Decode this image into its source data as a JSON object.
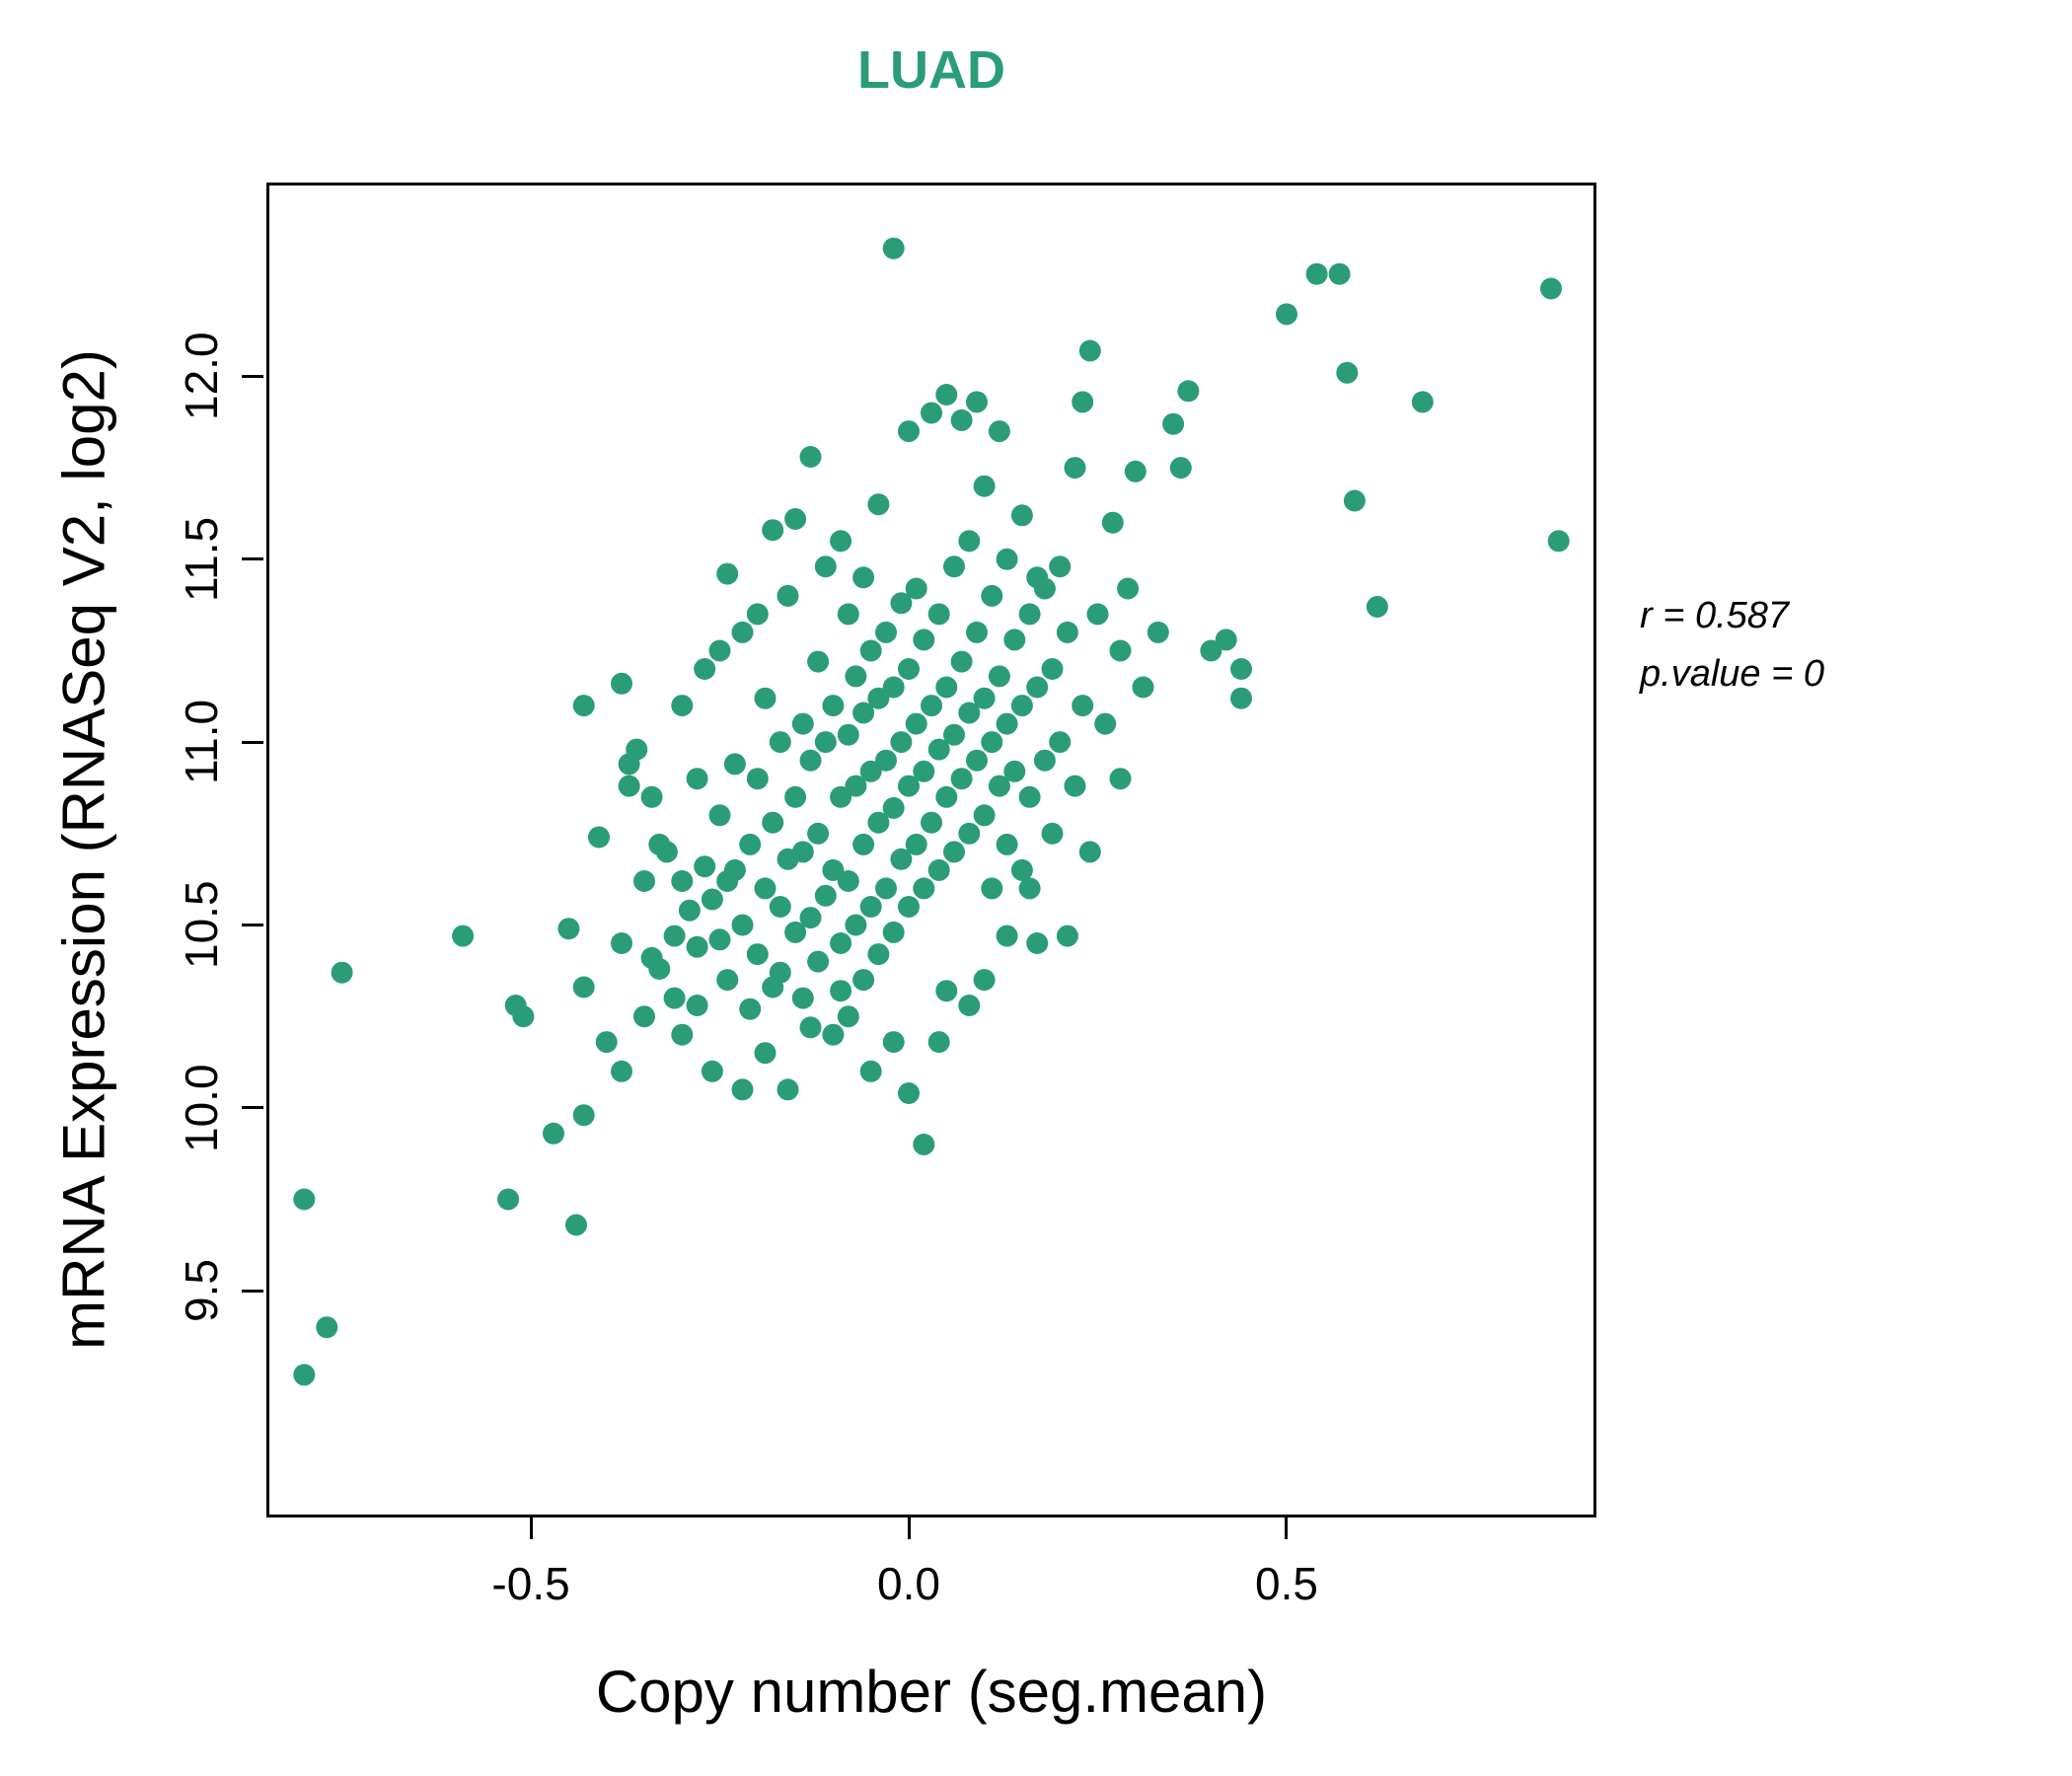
{
  "title": "LUAD",
  "title_color": "#2a9d78",
  "annotation": {
    "line1": "r = 0.587",
    "line2": "p.value = 0"
  },
  "chart_data": {
    "type": "scatter",
    "title": "LUAD",
    "xlabel": "Copy number (seg.mean)",
    "ylabel": "mRNA Expression (RNASeq V2, log2)",
    "xlim": [
      -0.85,
      0.91
    ],
    "ylim": [
      8.88,
      12.53
    ],
    "x_ticks": [
      -0.5,
      0.0,
      0.5
    ],
    "y_ticks": [
      9.5,
      10.0,
      10.5,
      11.0,
      11.5,
      12.0
    ],
    "grid": false,
    "legend": "none",
    "point_color": "#2a9d78",
    "correlation_r": 0.587,
    "p_value": 0,
    "points": [
      [
        -0.8,
        9.27
      ],
      [
        -0.77,
        9.4
      ],
      [
        -0.8,
        9.75
      ],
      [
        -0.75,
        10.37
      ],
      [
        -0.59,
        10.47
      ],
      [
        -0.53,
        9.75
      ],
      [
        -0.52,
        10.28
      ],
      [
        -0.51,
        10.25
      ],
      [
        -0.47,
        9.93
      ],
      [
        -0.44,
        9.68
      ],
      [
        -0.43,
        9.98
      ],
      [
        -0.45,
        10.49
      ],
      [
        -0.43,
        10.33
      ],
      [
        -0.41,
        10.74
      ],
      [
        -0.43,
        11.1
      ],
      [
        -0.4,
        10.18
      ],
      [
        -0.38,
        10.1
      ],
      [
        -0.38,
        10.45
      ],
      [
        -0.38,
        11.16
      ],
      [
        -0.37,
        10.94
      ],
      [
        -0.37,
        10.88
      ],
      [
        -0.36,
        10.98
      ],
      [
        -0.35,
        10.62
      ],
      [
        -0.35,
        10.25
      ],
      [
        -0.34,
        10.41
      ],
      [
        -0.34,
        10.85
      ],
      [
        -0.33,
        10.38
      ],
      [
        -0.33,
        10.72
      ],
      [
        -0.32,
        10.7
      ],
      [
        -0.31,
        10.3
      ],
      [
        -0.31,
        10.47
      ],
      [
        -0.3,
        10.2
      ],
      [
        -0.3,
        10.62
      ],
      [
        -0.3,
        11.1
      ],
      [
        -0.29,
        10.54
      ],
      [
        -0.28,
        10.44
      ],
      [
        -0.28,
        10.9
      ],
      [
        -0.28,
        10.28
      ],
      [
        -0.27,
        10.66
      ],
      [
        -0.27,
        11.2
      ],
      [
        -0.26,
        10.1
      ],
      [
        -0.26,
        10.57
      ],
      [
        -0.25,
        10.46
      ],
      [
        -0.25,
        10.8
      ],
      [
        -0.25,
        11.25
      ],
      [
        -0.24,
        10.35
      ],
      [
        -0.24,
        11.46
      ],
      [
        -0.24,
        10.62
      ],
      [
        -0.23,
        10.65
      ],
      [
        -0.23,
        10.94
      ],
      [
        -0.22,
        10.5
      ],
      [
        -0.22,
        11.3
      ],
      [
        -0.22,
        10.05
      ],
      [
        -0.21,
        10.27
      ],
      [
        -0.21,
        10.72
      ],
      [
        -0.2,
        10.42
      ],
      [
        -0.2,
        10.9
      ],
      [
        -0.2,
        11.35
      ],
      [
        -0.19,
        10.6
      ],
      [
        -0.19,
        11.12
      ],
      [
        -0.19,
        10.15
      ],
      [
        -0.18,
        10.33
      ],
      [
        -0.18,
        10.78
      ],
      [
        -0.18,
        11.58
      ],
      [
        -0.17,
        10.55
      ],
      [
        -0.17,
        11.0
      ],
      [
        -0.17,
        10.37
      ],
      [
        -0.16,
        10.05
      ],
      [
        -0.16,
        10.68
      ],
      [
        -0.16,
        11.4
      ],
      [
        -0.15,
        10.48
      ],
      [
        -0.15,
        10.85
      ],
      [
        -0.15,
        11.61
      ],
      [
        -0.14,
        10.3
      ],
      [
        -0.14,
        10.7
      ],
      [
        -0.14,
        11.05
      ],
      [
        -0.13,
        10.52
      ],
      [
        -0.13,
        10.95
      ],
      [
        -0.13,
        11.78
      ],
      [
        -0.13,
        10.22
      ],
      [
        -0.12,
        10.4
      ],
      [
        -0.12,
        10.75
      ],
      [
        -0.12,
        11.22
      ],
      [
        -0.11,
        10.58
      ],
      [
        -0.11,
        11.0
      ],
      [
        -0.11,
        11.48
      ],
      [
        -0.1,
        10.2
      ],
      [
        -0.1,
        10.65
      ],
      [
        -0.1,
        11.1
      ],
      [
        -0.09,
        10.45
      ],
      [
        -0.09,
        10.85
      ],
      [
        -0.09,
        11.55
      ],
      [
        -0.09,
        10.32
      ],
      [
        -0.08,
        10.62
      ],
      [
        -0.08,
        11.02
      ],
      [
        -0.08,
        11.35
      ],
      [
        -0.08,
        10.25
      ],
      [
        -0.07,
        10.5
      ],
      [
        -0.07,
        10.88
      ],
      [
        -0.07,
        11.18
      ],
      [
        -0.06,
        10.35
      ],
      [
        -0.06,
        10.72
      ],
      [
        -0.06,
        11.08
      ],
      [
        -0.06,
        11.45
      ],
      [
        -0.05,
        10.55
      ],
      [
        -0.05,
        10.92
      ],
      [
        -0.05,
        11.25
      ],
      [
        -0.05,
        10.1
      ],
      [
        -0.04,
        10.42
      ],
      [
        -0.04,
        10.78
      ],
      [
        -0.04,
        11.12
      ],
      [
        -0.04,
        11.65
      ],
      [
        -0.03,
        10.6
      ],
      [
        -0.03,
        10.95
      ],
      [
        -0.03,
        11.3
      ],
      [
        -0.02,
        10.48
      ],
      [
        -0.02,
        10.82
      ],
      [
        -0.02,
        11.15
      ],
      [
        -0.02,
        12.35
      ],
      [
        -0.02,
        10.18
      ],
      [
        -0.01,
        10.68
      ],
      [
        -0.01,
        11.0
      ],
      [
        -0.01,
        11.38
      ],
      [
        0.0,
        10.55
      ],
      [
        0.0,
        10.88
      ],
      [
        0.0,
        11.2
      ],
      [
        0.0,
        11.85
      ],
      [
        0.0,
        10.04
      ],
      [
        0.01,
        10.72
      ],
      [
        0.01,
        11.05
      ],
      [
        0.01,
        11.42
      ],
      [
        0.02,
        10.6
      ],
      [
        0.02,
        10.92
      ],
      [
        0.02,
        11.28
      ],
      [
        0.02,
        9.9
      ],
      [
        0.03,
        10.78
      ],
      [
        0.03,
        11.1
      ],
      [
        0.03,
        11.9
      ],
      [
        0.04,
        10.65
      ],
      [
        0.04,
        10.98
      ],
      [
        0.04,
        11.35
      ],
      [
        0.04,
        10.18
      ],
      [
        0.05,
        10.85
      ],
      [
        0.05,
        11.15
      ],
      [
        0.05,
        11.95
      ],
      [
        0.05,
        10.32
      ],
      [
        0.06,
        10.7
      ],
      [
        0.06,
        11.02
      ],
      [
        0.06,
        11.48
      ],
      [
        0.07,
        10.9
      ],
      [
        0.07,
        11.22
      ],
      [
        0.07,
        11.88
      ],
      [
        0.08,
        10.75
      ],
      [
        0.08,
        11.08
      ],
      [
        0.08,
        11.55
      ],
      [
        0.08,
        10.28
      ],
      [
        0.09,
        10.95
      ],
      [
        0.09,
        11.3
      ],
      [
        0.09,
        11.93
      ],
      [
        0.1,
        10.8
      ],
      [
        0.1,
        11.12
      ],
      [
        0.1,
        11.7
      ],
      [
        0.1,
        10.35
      ],
      [
        0.11,
        10.6
      ],
      [
        0.11,
        11.0
      ],
      [
        0.11,
        11.4
      ],
      [
        0.12,
        10.88
      ],
      [
        0.12,
        11.18
      ],
      [
        0.12,
        11.85
      ],
      [
        0.13,
        10.72
      ],
      [
        0.13,
        11.05
      ],
      [
        0.13,
        11.5
      ],
      [
        0.13,
        10.47
      ],
      [
        0.14,
        10.92
      ],
      [
        0.14,
        11.28
      ],
      [
        0.15,
        10.65
      ],
      [
        0.15,
        11.1
      ],
      [
        0.15,
        11.62
      ],
      [
        0.16,
        10.85
      ],
      [
        0.16,
        11.35
      ],
      [
        0.16,
        10.6
      ],
      [
        0.17,
        10.45
      ],
      [
        0.17,
        11.15
      ],
      [
        0.17,
        11.45
      ],
      [
        0.18,
        10.95
      ],
      [
        0.18,
        11.42
      ],
      [
        0.19,
        10.75
      ],
      [
        0.19,
        11.2
      ],
      [
        0.2,
        11.0
      ],
      [
        0.2,
        11.48
      ],
      [
        0.21,
        10.47
      ],
      [
        0.21,
        11.3
      ],
      [
        0.22,
        10.88
      ],
      [
        0.22,
        11.75
      ],
      [
        0.23,
        11.1
      ],
      [
        0.23,
        11.93
      ],
      [
        0.24,
        12.07
      ],
      [
        0.24,
        10.7
      ],
      [
        0.25,
        11.35
      ],
      [
        0.26,
        11.05
      ],
      [
        0.27,
        11.6
      ],
      [
        0.28,
        10.9
      ],
      [
        0.28,
        11.25
      ],
      [
        0.29,
        11.42
      ],
      [
        0.3,
        11.74
      ],
      [
        0.31,
        11.15
      ],
      [
        0.33,
        11.3
      ],
      [
        0.35,
        11.87
      ],
      [
        0.36,
        11.75
      ],
      [
        0.37,
        11.96
      ],
      [
        0.4,
        11.25
      ],
      [
        0.42,
        11.28
      ],
      [
        0.44,
        11.2
      ],
      [
        0.44,
        11.12
      ],
      [
        0.5,
        12.17
      ],
      [
        0.54,
        12.28
      ],
      [
        0.57,
        12.28
      ],
      [
        0.58,
        12.01
      ],
      [
        0.59,
        11.66
      ],
      [
        0.62,
        11.37
      ],
      [
        0.68,
        11.93
      ],
      [
        0.85,
        12.24
      ],
      [
        0.86,
        11.55
      ]
    ]
  }
}
